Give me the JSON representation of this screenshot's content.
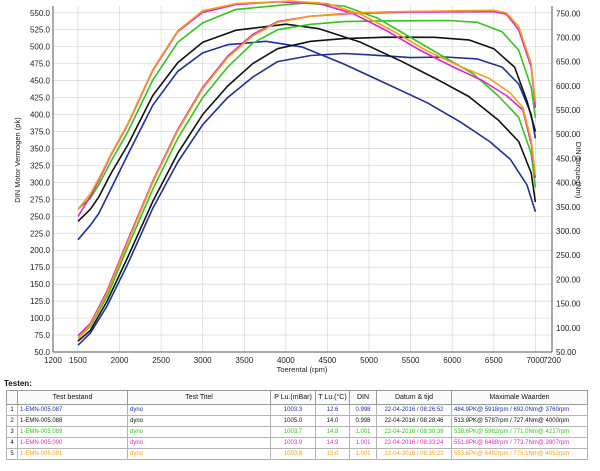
{
  "chart_data": {
    "type": "line",
    "xlabel": "Toerental (rpm)",
    "ylabel_left": "DIN Motor Vermogen (pk)",
    "ylabel_right": "DIN Torque (Nm)",
    "xlim": [
      1200,
      7200
    ],
    "ylim_left": [
      50,
      560
    ],
    "ylim_right": [
      50,
      765
    ],
    "x_ticks": [
      "1200",
      "1500",
      "2000",
      "2500",
      "3000",
      "3500",
      "4000",
      "4500",
      "5000",
      "5500",
      "6000",
      "6500",
      "7000",
      "7200"
    ],
    "y_ticks_left": [
      "50.0",
      "75.0",
      "100.0",
      "125.0",
      "150.0",
      "175.0",
      "200.0",
      "225.0",
      "250.0",
      "275.0",
      "300.0",
      "325.0",
      "350.0",
      "375.0",
      "400.0",
      "425.0",
      "450.0",
      "475.0",
      "500.0",
      "525.0",
      "550.0"
    ],
    "y_ticks_right": [
      "50.00",
      "100.00",
      "150.00",
      "200.00",
      "250.00",
      "300.00",
      "350.00",
      "400.00",
      "450.00",
      "500.00",
      "550.00",
      "600.00",
      "650.00",
      "700.00",
      "750.00"
    ],
    "grid": true,
    "series": [
      {
        "color": "#1f2f9e",
        "power": [
          [
            1500,
            60
          ],
          [
            1650,
            78
          ],
          [
            1850,
            118
          ],
          [
            2100,
            180
          ],
          [
            2400,
            262
          ],
          [
            2700,
            330
          ],
          [
            3000,
            385
          ],
          [
            3300,
            425
          ],
          [
            3600,
            455
          ],
          [
            3900,
            478
          ],
          [
            4300,
            487
          ],
          [
            4700,
            490
          ],
          [
            5000,
            488
          ],
          [
            5500,
            484
          ],
          [
            5918,
            484.9
          ],
          [
            6300,
            482
          ],
          [
            6600,
            470
          ],
          [
            6800,
            445
          ],
          [
            6950,
            400
          ],
          [
            7000,
            365
          ]
        ],
        "torque": [
          [
            1500,
            282
          ],
          [
            1650,
            312
          ],
          [
            1750,
            336
          ],
          [
            1900,
            388
          ],
          [
            2100,
            458
          ],
          [
            2400,
            560
          ],
          [
            2700,
            630
          ],
          [
            3000,
            668
          ],
          [
            3300,
            685
          ],
          [
            3760,
            692
          ],
          [
            4200,
            680
          ],
          [
            4700,
            645
          ],
          [
            5200,
            605
          ],
          [
            5700,
            565
          ],
          [
            6100,
            525
          ],
          [
            6450,
            485
          ],
          [
            6700,
            448
          ],
          [
            6900,
            395
          ],
          [
            7000,
            340
          ]
        ]
      },
      {
        "color": "#111111",
        "power": [
          [
            1500,
            66
          ],
          [
            1650,
            82
          ],
          [
            1850,
            125
          ],
          [
            2100,
            190
          ],
          [
            2400,
            272
          ],
          [
            2700,
            343
          ],
          [
            3000,
            400
          ],
          [
            3300,
            442
          ],
          [
            3600,
            475
          ],
          [
            3900,
            497
          ],
          [
            4300,
            508
          ],
          [
            4700,
            512
          ],
          [
            5200,
            514
          ],
          [
            5787,
            513.9
          ],
          [
            6200,
            510
          ],
          [
            6500,
            497
          ],
          [
            6750,
            470
          ],
          [
            6900,
            420
          ],
          [
            7000,
            375
          ]
        ],
        "torque": [
          [
            1500,
            320
          ],
          [
            1650,
            345
          ],
          [
            1750,
            370
          ],
          [
            1900,
            420
          ],
          [
            2100,
            478
          ],
          [
            2400,
            580
          ],
          [
            2700,
            648
          ],
          [
            3000,
            690
          ],
          [
            3400,
            715
          ],
          [
            4000,
            727.4
          ],
          [
            4400,
            718
          ],
          [
            4900,
            690
          ],
          [
            5400,
            650
          ],
          [
            5800,
            615
          ],
          [
            6200,
            578
          ],
          [
            6550,
            530
          ],
          [
            6800,
            485
          ],
          [
            6950,
            420
          ],
          [
            7000,
            360
          ]
        ]
      },
      {
        "color": "#33c41e",
        "power": [
          [
            1500,
            70
          ],
          [
            1650,
            88
          ],
          [
            1850,
            132
          ],
          [
            2100,
            205
          ],
          [
            2400,
            290
          ],
          [
            2700,
            365
          ],
          [
            3000,
            425
          ],
          [
            3300,
            470
          ],
          [
            3600,
            505
          ],
          [
            3900,
            525
          ],
          [
            4300,
            533
          ],
          [
            4700,
            537
          ],
          [
            5200,
            538
          ],
          [
            5962,
            538.6
          ],
          [
            6300,
            536
          ],
          [
            6600,
            522
          ],
          [
            6800,
            495
          ],
          [
            6950,
            440
          ],
          [
            7000,
            395
          ]
        ],
        "torque": [
          [
            1500,
            345
          ],
          [
            1650,
            368
          ],
          [
            1750,
            395
          ],
          [
            1900,
            445
          ],
          [
            2100,
            505
          ],
          [
            2400,
            612
          ],
          [
            2700,
            690
          ],
          [
            3000,
            730
          ],
          [
            3400,
            758
          ],
          [
            4217,
            771.0
          ],
          [
            4700,
            765
          ],
          [
            5100,
            740
          ],
          [
            5500,
            700
          ],
          [
            5900,
            660
          ],
          [
            6250,
            625
          ],
          [
            6550,
            580
          ],
          [
            6800,
            535
          ],
          [
            6950,
            460
          ],
          [
            7000,
            390
          ]
        ]
      },
      {
        "color": "#e024c8",
        "power": [
          [
            1500,
            74
          ],
          [
            1650,
            92
          ],
          [
            1850,
            140
          ],
          [
            2100,
            215
          ],
          [
            2400,
            302
          ],
          [
            2700,
            378
          ],
          [
            3000,
            440
          ],
          [
            3300,
            486
          ],
          [
            3600,
            518
          ],
          [
            3900,
            537
          ],
          [
            4300,
            545
          ],
          [
            4800,
            549
          ],
          [
            5500,
            551
          ],
          [
            6488,
            551.8
          ],
          [
            6650,
            548
          ],
          [
            6800,
            525
          ],
          [
            6950,
            470
          ],
          [
            7000,
            410
          ]
        ],
        "torque": [
          [
            1500,
            330
          ],
          [
            1650,
            372
          ],
          [
            1750,
            404
          ],
          [
            1900,
            458
          ],
          [
            2100,
            520
          ],
          [
            2400,
            632
          ],
          [
            2700,
            712
          ],
          [
            3000,
            752
          ],
          [
            3400,
            768
          ],
          [
            3907,
            773.7
          ],
          [
            4400,
            770
          ],
          [
            4800,
            750
          ],
          [
            5200,
            715
          ],
          [
            5600,
            675
          ],
          [
            6000,
            640
          ],
          [
            6350,
            612
          ],
          [
            6650,
            580
          ],
          [
            6850,
            550
          ],
          [
            6950,
            480
          ],
          [
            7000,
            410
          ]
        ]
      },
      {
        "color": "#f2a01a",
        "power": [
          [
            1500,
            70
          ],
          [
            1650,
            90
          ],
          [
            1850,
            137
          ],
          [
            2100,
            212
          ],
          [
            2400,
            300
          ],
          [
            2700,
            376
          ],
          [
            3000,
            438
          ],
          [
            3300,
            484
          ],
          [
            3600,
            516
          ],
          [
            3900,
            536
          ],
          [
            4300,
            545
          ],
          [
            4800,
            550
          ],
          [
            5500,
            552
          ],
          [
            6492,
            553.6
          ],
          [
            6650,
            550
          ],
          [
            6800,
            530
          ],
          [
            6950,
            475
          ],
          [
            7000,
            418
          ]
        ],
        "torque": [
          [
            1500,
            345
          ],
          [
            1650,
            377
          ],
          [
            1750,
            408
          ],
          [
            1900,
            460
          ],
          [
            2100,
            522
          ],
          [
            2400,
            634
          ],
          [
            2700,
            714
          ],
          [
            3000,
            755
          ],
          [
            3400,
            770
          ],
          [
            4052,
            775.1
          ],
          [
            4500,
            770
          ],
          [
            4900,
            748
          ],
          [
            5300,
            712
          ],
          [
            5700,
            672
          ],
          [
            6100,
            640
          ],
          [
            6450,
            615
          ],
          [
            6700,
            585
          ],
          [
            6850,
            555
          ],
          [
            6950,
            488
          ],
          [
            7000,
            415
          ]
        ]
      }
    ]
  },
  "table": {
    "section_label": "Testen:",
    "headers": [
      "",
      "Test bestand",
      "Test Titel",
      "P Lu.(mBar)",
      "T Lu.(°C)",
      "DIN",
      "Datum & tijd",
      "Maximale Waarden"
    ],
    "rows": [
      {
        "color": "#1f2f9e",
        "cells": [
          "1",
          "1-EMN-005.087",
          "dyno",
          "1003.3",
          "12.6",
          "0.998",
          "22-04-2016 / 08:26:52",
          "484.9PK@ 5918rpm / 692.0Nm@ 3760rpm"
        ]
      },
      {
        "color": "#111111",
        "cells": [
          "2",
          "1-EMN-005.088",
          "dyno",
          "1005.0",
          "14.0",
          "0.998",
          "22-04-2016 / 08:28:46",
          "513.9PK@ 5787rpm / 727.4Nm@ 4000rpm"
        ]
      },
      {
        "color": "#33c41e",
        "cells": [
          "3",
          "1-EMN-005.089",
          "dyno",
          "1003.7",
          "14.8",
          "1.001",
          "22-04-2016 / 08:30:39",
          "538.6PK@ 5962rpm / 771.0Nm@ 4217rpm"
        ]
      },
      {
        "color": "#e024c8",
        "cells": [
          "4",
          "1-EMN-005.090",
          "dyno",
          "1003.9",
          "14.9",
          "1.001",
          "22-04-2016 / 08:33:24",
          "551.8PK@ 6488rpm / 773.7Nm@ 3907rpm"
        ]
      },
      {
        "color": "#f2a01a",
        "cells": [
          "5",
          "1-EMN-005.091",
          "dyno",
          "1003.8",
          "15.0",
          "1.001",
          "22-04-2016 / 08:35:23",
          "553.6PK@ 6492rpm / 775.1Nm@ 4052rpm"
        ]
      }
    ]
  }
}
